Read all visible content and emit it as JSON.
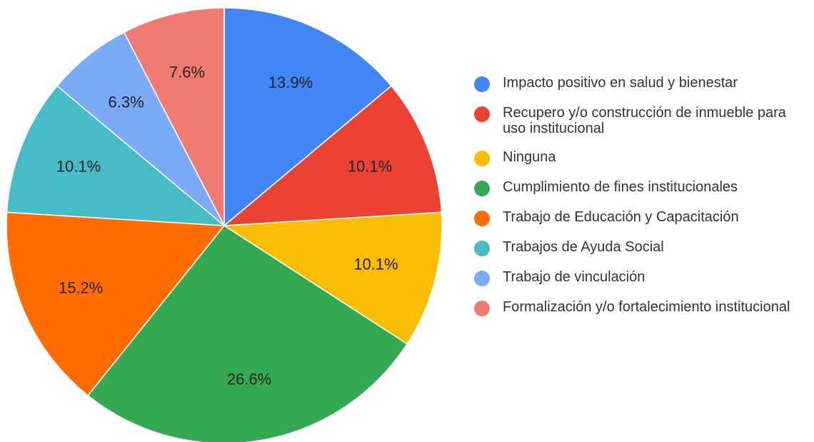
{
  "chart_data": {
    "type": "pie",
    "categories": [
      "Impacto positivo en salud y bienestar",
      "Recupero y/o construcción de inmueble para uso institucional",
      "Ninguna",
      "Cumplimiento de fines institucionales",
      "Trabajo de Educación y Capacitación",
      "Trabajos de Ayuda Social",
      "Trabajo de vinculación",
      "Formalización y/o fortalecimiento institucional"
    ],
    "values": [
      13.9,
      10.1,
      10.1,
      26.6,
      15.2,
      10.1,
      6.3,
      7.6
    ],
    "value_labels": [
      "13.9%",
      "10.1%",
      "10.1%",
      "26.6%",
      "15.2%",
      "10.1%",
      "6.3%",
      "7.6%"
    ],
    "colors": [
      "#4285f4",
      "#ea4335",
      "#fbbc04",
      "#34a853",
      "#ff6d01",
      "#46bdc6",
      "#7baaf7",
      "#f07b72"
    ],
    "legend": "right"
  }
}
